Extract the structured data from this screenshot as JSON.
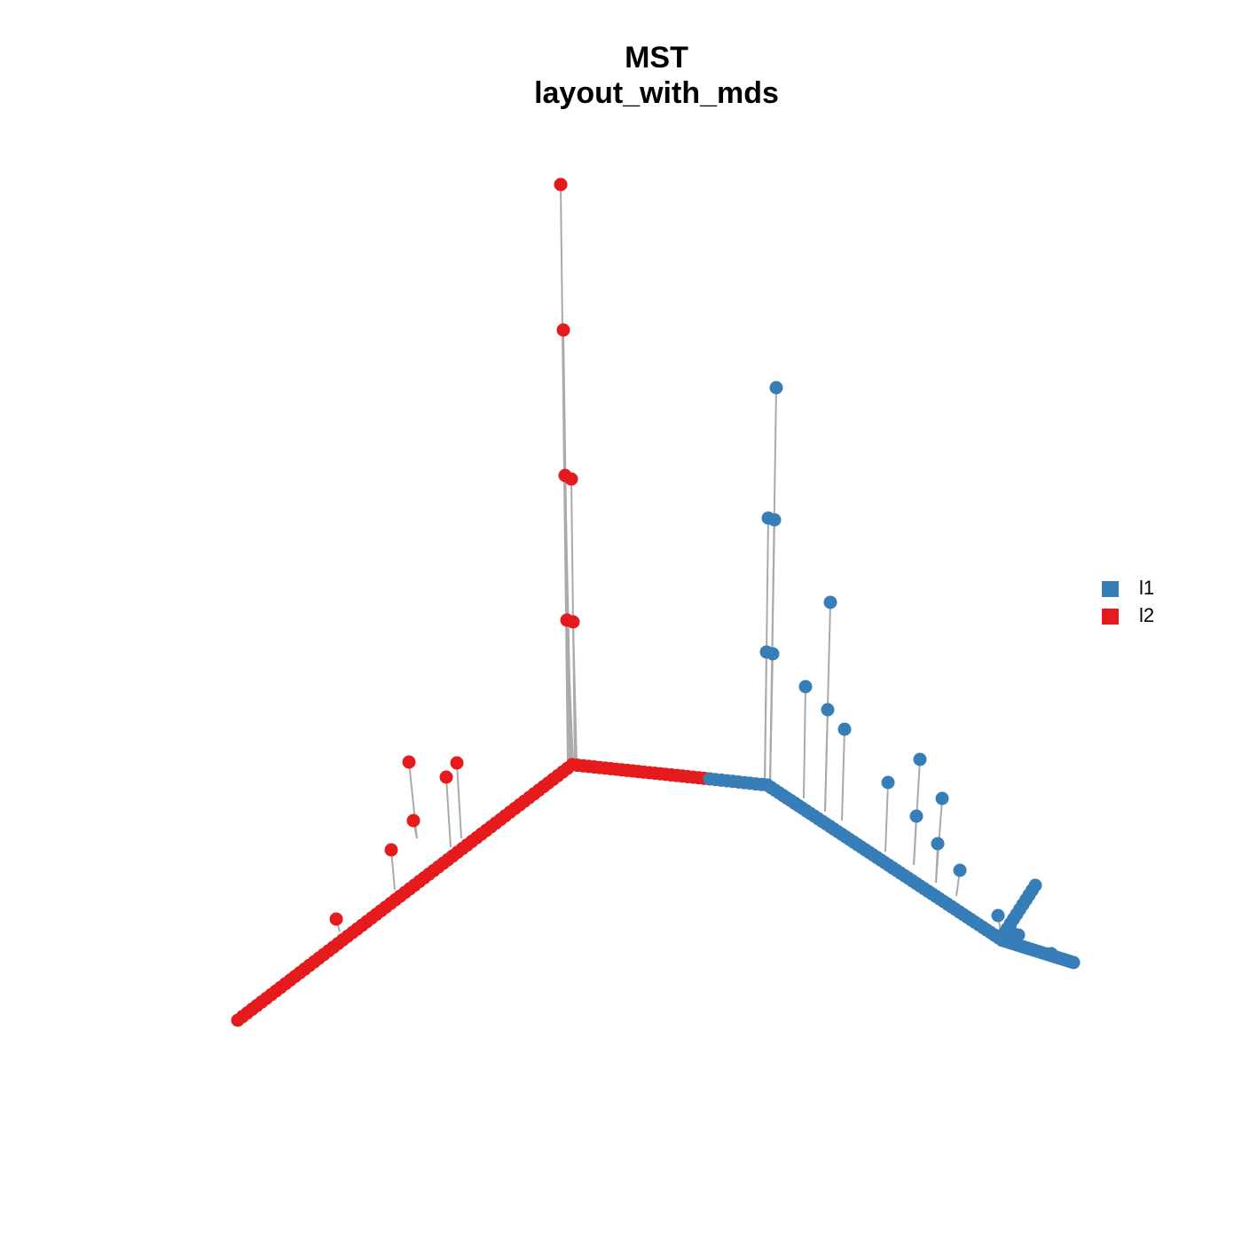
{
  "title": {
    "line1": "MST",
    "line2": "layout_with_mds"
  },
  "legend": [
    {
      "label": "l1",
      "color": "#377eb8"
    },
    {
      "label": "l2",
      "color": "#e41a1c"
    }
  ],
  "edge_color": "#aaaaaa"
}
